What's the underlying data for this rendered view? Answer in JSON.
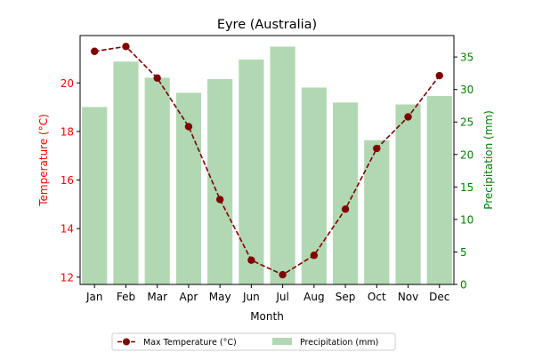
{
  "chart_data": {
    "type": "bar+line",
    "title": "Eyre (Australia)",
    "xlabel": "Month",
    "ylabel_left": "Temperature (°C)",
    "ylabel_right": "Precipitation (mm)",
    "categories": [
      "Jan",
      "Feb",
      "Mar",
      "Apr",
      "May",
      "Jun",
      "Jul",
      "Aug",
      "Sep",
      "Oct",
      "Nov",
      "Dec"
    ],
    "ylim_left": [
      11.7,
      21.95
    ],
    "ylim_right": [
      0,
      38.3
    ],
    "yticks_left": [
      12,
      14,
      16,
      18,
      20
    ],
    "yticks_right": [
      0,
      5,
      10,
      15,
      20,
      25,
      30,
      35
    ],
    "series": [
      {
        "name": "Max Temperature (°C)",
        "kind": "line",
        "axis": "left",
        "values": [
          21.3,
          21.5,
          20.2,
          18.2,
          15.2,
          12.7,
          12.1,
          12.9,
          14.8,
          17.3,
          18.6,
          20.3
        ]
      },
      {
        "name": "Precipitation (mm)",
        "kind": "bar",
        "axis": "right",
        "values": [
          27.3,
          34.3,
          31.8,
          29.5,
          31.6,
          34.6,
          36.6,
          30.3,
          28.0,
          22.2,
          27.7,
          29.0
        ]
      }
    ],
    "legend_position": "bottom-center",
    "grid": false,
    "colors": {
      "line": "#800000",
      "bar": "#b1d8b2",
      "left_axis": "#ff0000",
      "right_axis": "#008000"
    }
  }
}
